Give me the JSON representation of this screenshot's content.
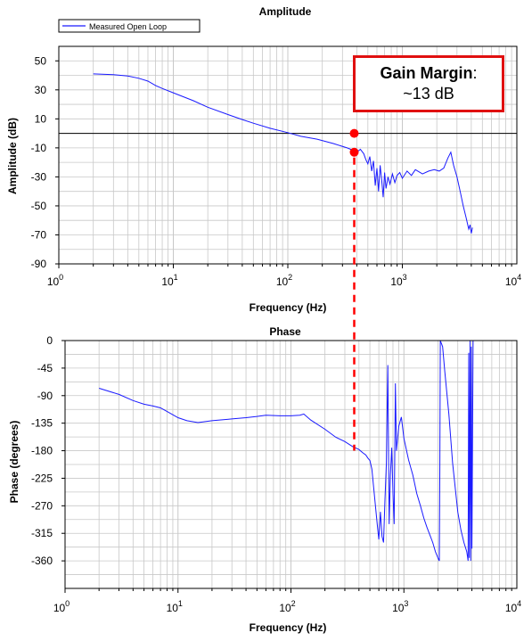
{
  "chart_data": [
    {
      "type": "line",
      "title": "Amplitude",
      "xlabel": "Frequency (Hz)",
      "ylabel": "Amplitude (dB)",
      "xscale": "log",
      "xlim": [
        1,
        10000
      ],
      "ylim": [
        -90,
        60
      ],
      "x_ticks": [
        1,
        10,
        100,
        1000,
        10000
      ],
      "x_tick_labels": [
        {
          "base": "10",
          "exp": "0"
        },
        {
          "base": "10",
          "exp": "1"
        },
        {
          "base": "10",
          "exp": "2"
        },
        {
          "base": "10",
          "exp": "3"
        },
        {
          "base": "10",
          "exp": "4"
        }
      ],
      "y_ticks": [
        50,
        30,
        10,
        -10,
        -30,
        -50,
        -70,
        -90
      ],
      "y_tick_labels": [
        "50",
        "30",
        "10",
        "-10",
        "-30",
        "-50",
        "-70",
        "-90"
      ],
      "grid": true,
      "legend": {
        "position": "top-left",
        "entries": [
          "Measured Open Loop"
        ]
      },
      "reference_line_y": 0,
      "series": [
        {
          "name": "Measured Open Loop",
          "color": "#1a1aff",
          "points": [
            [
              2,
              41
            ],
            [
              3,
              40.5
            ],
            [
              4,
              39.5
            ],
            [
              5,
              38
            ],
            [
              6,
              36
            ],
            [
              7,
              33
            ],
            [
              8,
              31
            ],
            [
              10,
              28
            ],
            [
              15,
              22.5
            ],
            [
              20,
              18
            ],
            [
              30,
              13
            ],
            [
              40,
              9.5
            ],
            [
              50,
              7
            ],
            [
              70,
              3.5
            ],
            [
              100,
              0.5
            ],
            [
              130,
              -2
            ],
            [
              180,
              -4
            ],
            [
              250,
              -7
            ],
            [
              330,
              -10
            ],
            [
              380,
              -12
            ],
            [
              400,
              -13
            ],
            [
              430,
              -11
            ],
            [
              460,
              -14
            ],
            [
              480,
              -18
            ],
            [
              500,
              -21
            ],
            [
              520,
              -16
            ],
            [
              540,
              -26
            ],
            [
              560,
              -19
            ],
            [
              580,
              -36
            ],
            [
              600,
              -24
            ],
            [
              620,
              -40
            ],
            [
              640,
              -22
            ],
            [
              660,
              -32
            ],
            [
              680,
              -44
            ],
            [
              700,
              -27
            ],
            [
              720,
              -38
            ],
            [
              750,
              -30
            ],
            [
              780,
              -35
            ],
            [
              820,
              -28
            ],
            [
              860,
              -34
            ],
            [
              900,
              -29
            ],
            [
              950,
              -27
            ],
            [
              1000,
              -31
            ],
            [
              1100,
              -26
            ],
            [
              1200,
              -29
            ],
            [
              1300,
              -25
            ],
            [
              1500,
              -28
            ],
            [
              1700,
              -26
            ],
            [
              1900,
              -25
            ],
            [
              2100,
              -26
            ],
            [
              2300,
              -24
            ],
            [
              2500,
              -17
            ],
            [
              2650,
              -13
            ],
            [
              2800,
              -22
            ],
            [
              3000,
              -30
            ],
            [
              3200,
              -40
            ],
            [
              3400,
              -50
            ],
            [
              3600,
              -58
            ],
            [
              3800,
              -66
            ],
            [
              3900,
              -63
            ],
            [
              4000,
              -69
            ],
            [
              4100,
              -65
            ]
          ]
        }
      ],
      "markers": [
        {
          "x": 380,
          "y": 0,
          "color": "#ff0000"
        },
        {
          "x": 380,
          "y": -13,
          "color": "#ff0000"
        }
      ]
    },
    {
      "type": "line",
      "title": "Phase",
      "xlabel": "Frequency (Hz)",
      "ylabel": "Phase (degrees)",
      "xscale": "log",
      "xlim": [
        1,
        10000
      ],
      "ylim": [
        -405,
        0
      ],
      "x_ticks": [
        1,
        10,
        100,
        1000,
        10000
      ],
      "x_tick_labels": [
        {
          "base": "10",
          "exp": "0"
        },
        {
          "base": "10",
          "exp": "1"
        },
        {
          "base": "10",
          "exp": "2"
        },
        {
          "base": "10",
          "exp": "3"
        },
        {
          "base": "10",
          "exp": "4"
        }
      ],
      "y_ticks": [
        0,
        -45,
        -90,
        -135,
        -180,
        -225,
        -270,
        -315,
        -360
      ],
      "y_tick_labels": [
        "0",
        "-45",
        "-90",
        "-135",
        "-180",
        "-225",
        "-270",
        "-315",
        "-360"
      ],
      "grid": true,
      "series": [
        {
          "name": "",
          "color": "#1a1aff",
          "points": [
            [
              2,
              -78
            ],
            [
              3,
              -88
            ],
            [
              4,
              -98
            ],
            [
              5,
              -104
            ],
            [
              6,
              -107
            ],
            [
              7,
              -110
            ],
            [
              8,
              -116
            ],
            [
              10,
              -126
            ],
            [
              12,
              -131
            ],
            [
              15,
              -134
            ],
            [
              20,
              -131
            ],
            [
              30,
              -128
            ],
            [
              40,
              -126
            ],
            [
              50,
              -124
            ],
            [
              60,
              -122
            ],
            [
              80,
              -123
            ],
            [
              100,
              -123
            ],
            [
              120,
              -122
            ],
            [
              130,
              -120
            ],
            [
              150,
              -130
            ],
            [
              200,
              -145
            ],
            [
              250,
              -158
            ],
            [
              300,
              -165
            ],
            [
              350,
              -173
            ],
            [
              400,
              -178
            ],
            [
              430,
              -183
            ],
            [
              460,
              -187
            ],
            [
              480,
              -192
            ],
            [
              500,
              -196
            ],
            [
              520,
              -210
            ],
            [
              540,
              -240
            ],
            [
              560,
              -270
            ],
            [
              580,
              -300
            ],
            [
              600,
              -325
            ],
            [
              620,
              -280
            ],
            [
              640,
              -320
            ],
            [
              660,
              -330
            ],
            [
              680,
              -260
            ],
            [
              700,
              -200
            ],
            [
              720,
              -40
            ],
            [
              740,
              -300
            ],
            [
              760,
              -220
            ],
            [
              780,
              -175
            ],
            [
              800,
              -250
            ],
            [
              820,
              -300
            ],
            [
              840,
              -70
            ],
            [
              860,
              -180
            ],
            [
              900,
              -140
            ],
            [
              950,
              -125
            ],
            [
              1000,
              -160
            ],
            [
              1100,
              -195
            ],
            [
              1200,
              -220
            ],
            [
              1300,
              -250
            ],
            [
              1400,
              -270
            ],
            [
              1500,
              -290
            ],
            [
              1600,
              -305
            ],
            [
              1700,
              -318
            ],
            [
              1800,
              -330
            ],
            [
              1900,
              -345
            ],
            [
              2000,
              -355
            ],
            [
              2060,
              -360
            ],
            [
              2080,
              -200
            ],
            [
              2100,
              0
            ],
            [
              2200,
              -10
            ],
            [
              2300,
              -50
            ],
            [
              2500,
              -120
            ],
            [
              2700,
              -200
            ],
            [
              3000,
              -280
            ],
            [
              3200,
              -310
            ],
            [
              3400,
              -330
            ],
            [
              3600,
              -345
            ],
            [
              3700,
              -360
            ],
            [
              3750,
              -20
            ],
            [
              3800,
              -355
            ],
            [
              3850,
              0
            ],
            [
              3900,
              -360
            ],
            [
              3950,
              -10
            ],
            [
              4000,
              -340
            ],
            [
              4100,
              0
            ]
          ]
        }
      ]
    }
  ],
  "annotation": {
    "title": "Gain Margin",
    "colon": ":",
    "value": "~13 dB",
    "border_color": "#e01010"
  },
  "colors": {
    "series": "#1a1aff",
    "marker": "#ff0000",
    "dashed_line": "#ff0000",
    "grid": "#c8c8c8",
    "axis": "#000000"
  }
}
